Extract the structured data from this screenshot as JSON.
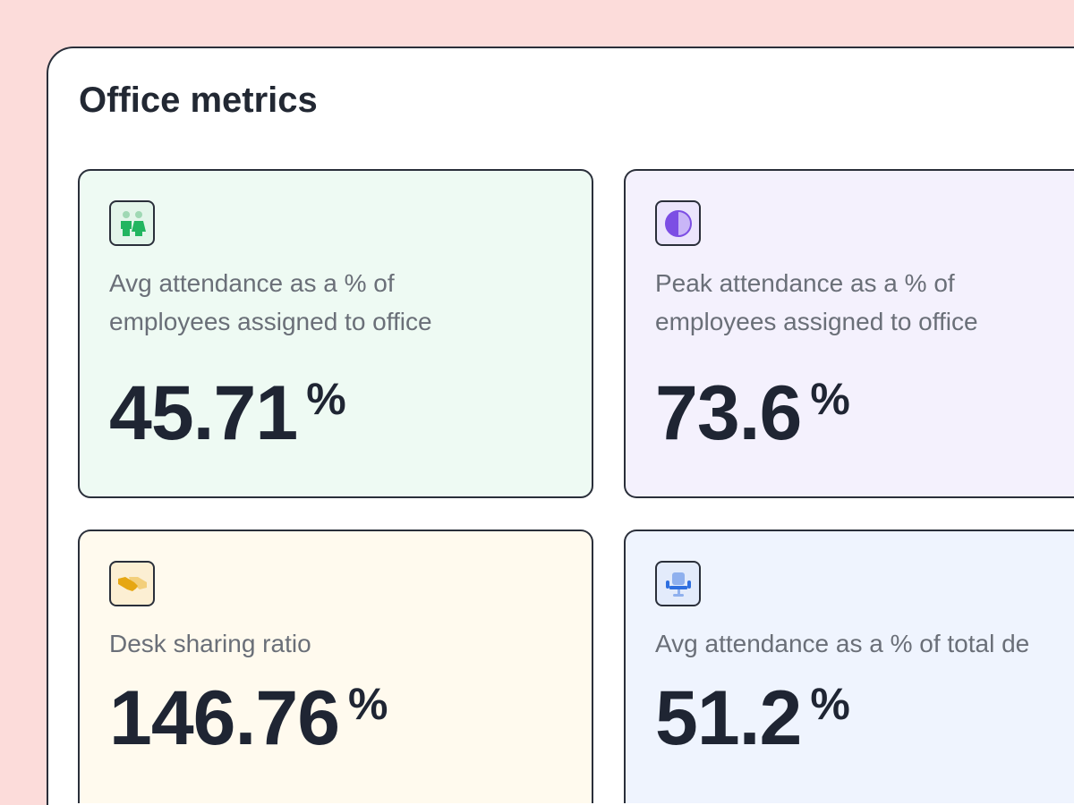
{
  "title": "Office metrics",
  "metrics": [
    {
      "label_line1": "Avg attendance as a % of",
      "label_line2": "employees assigned to office",
      "value": "45.71",
      "unit": "%",
      "icon": "people-icon",
      "bg": "#eefaf3"
    },
    {
      "label_line1": "Peak attendance as a % of",
      "label_line2": "employees assigned to office",
      "value": "73.6",
      "unit": "%",
      "icon": "half-circle-icon",
      "bg": "#f4f1fd"
    },
    {
      "label_line1": "Desk sharing ratio",
      "label_line2": "",
      "value": "146.76",
      "unit": "%",
      "icon": "handshake-icon",
      "bg": "#fffaee"
    },
    {
      "label_line1": "Avg attendance as a % of total de",
      "label_line2": "",
      "value": "51.2",
      "unit": "%",
      "icon": "office-chair-icon",
      "bg": "#eff4fe"
    }
  ]
}
